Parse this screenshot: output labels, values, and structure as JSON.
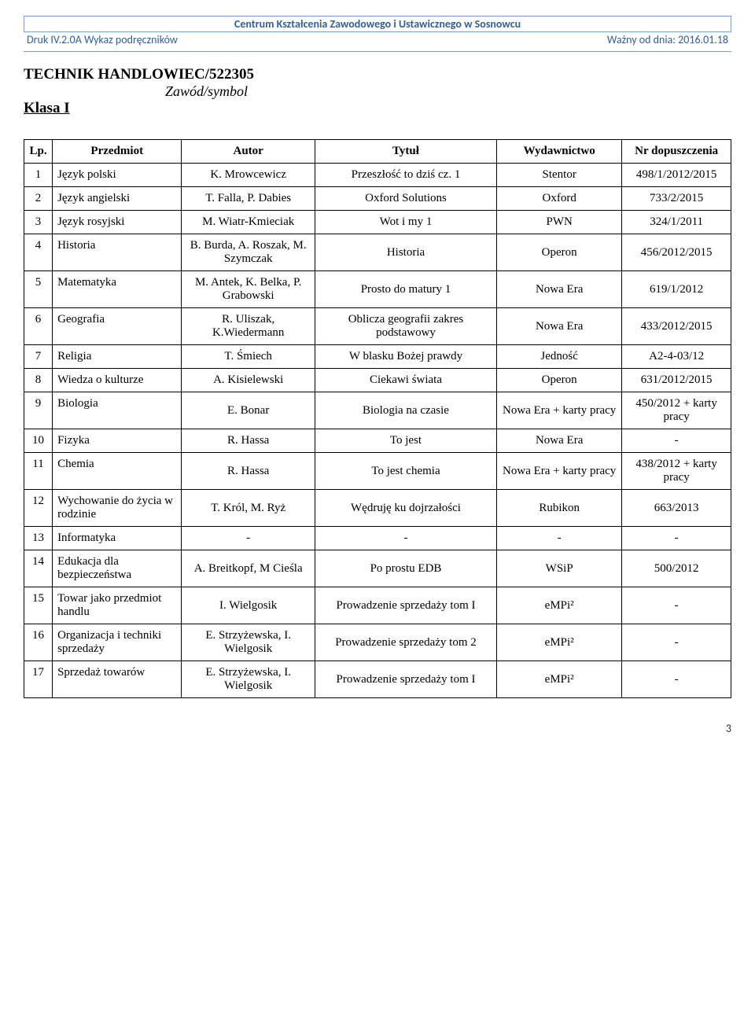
{
  "header": {
    "center": "Centrum Kształcenia Zawodowego i Ustawicznego w Sosnowcu",
    "left": "Druk IV.2.0A Wykaz podręczników",
    "right": "Ważny od dnia: 2016.01.18"
  },
  "titles": {
    "main": "TECHNIK HANDLOWIEC/522305",
    "sub": "Zawód/symbol",
    "klasa": "Klasa I"
  },
  "columns": {
    "lp": "Lp.",
    "subject": "Przedmiot",
    "author": "Autor",
    "title": "Tytuł",
    "publisher": "Wydawnictwo",
    "nr": "Nr dopuszczenia"
  },
  "rows": [
    {
      "lp": "1",
      "subject": "Język polski",
      "author": "K. Mrowcewicz",
      "title": "Przeszłość to dziś cz. 1",
      "publisher": "Stentor",
      "nr": "498/1/2012/2015"
    },
    {
      "lp": "2",
      "subject": "Język angielski",
      "author": "T. Falla, P. Dabies",
      "title": "Oxford Solutions",
      "publisher": "Oxford",
      "nr": "733/2/2015"
    },
    {
      "lp": "3",
      "subject": "Język rosyjski",
      "author": "M. Wiatr-Kmieciak",
      "title": "Wot i my 1",
      "publisher": "PWN",
      "nr": "324/1/2011"
    },
    {
      "lp": "4",
      "subject": "Historia",
      "author": "B. Burda, A. Roszak, M. Szymczak",
      "title": "Historia",
      "publisher": "Operon",
      "nr": "456/2012/2015"
    },
    {
      "lp": "5",
      "subject": "Matematyka",
      "author": "M. Antek, K. Belka, P. Grabowski",
      "title": "Prosto do matury 1",
      "publisher": "Nowa Era",
      "nr": "619/1/2012"
    },
    {
      "lp": "6",
      "subject": "Geografia",
      "author": "R. Uliszak, K.Wiedermann",
      "title": "Oblicza geografii zakres podstawowy",
      "publisher": "Nowa Era",
      "nr": "433/2012/2015"
    },
    {
      "lp": "7",
      "subject": "Religia",
      "author": "T. Śmiech",
      "title": "W blasku Bożej prawdy",
      "publisher": "Jedność",
      "nr": "A2-4-03/12"
    },
    {
      "lp": "8",
      "subject": "Wiedza o kulturze",
      "author": "A. Kisielewski",
      "title": "Ciekawi świata",
      "publisher": "Operon",
      "nr": "631/2012/2015"
    },
    {
      "lp": "9",
      "subject": "Biologia",
      "author": "E. Bonar",
      "title": "Biologia na czasie",
      "publisher": "Nowa Era + karty pracy",
      "nr": "450/2012 + karty pracy"
    },
    {
      "lp": "10",
      "subject": "Fizyka",
      "author": "R. Hassa",
      "title": "To jest",
      "publisher": "Nowa Era",
      "nr": "-"
    },
    {
      "lp": "11",
      "subject": "Chemia",
      "author": "R. Hassa",
      "title": "To jest chemia",
      "publisher": "Nowa Era + karty pracy",
      "nr": "438/2012 + karty pracy"
    },
    {
      "lp": "12",
      "subject": "Wychowanie do życia w rodzinie",
      "author": "T. Król, M. Ryż",
      "title": "Wędruję ku dojrzałości",
      "publisher": "Rubikon",
      "nr": "663/2013"
    },
    {
      "lp": "13",
      "subject": "Informatyka",
      "author": "-",
      "title": "-",
      "publisher": "-",
      "nr": "-"
    },
    {
      "lp": "14",
      "subject": "Edukacja dla bezpieczeństwa",
      "author": "A. Breitkopf, M Cieśla",
      "title": "Po prostu EDB",
      "publisher": "WSiP",
      "nr": "500/2012"
    },
    {
      "lp": "15",
      "subject": "Towar jako przedmiot handlu",
      "author": "I. Wielgosik",
      "title": "Prowadzenie sprzedaży tom I",
      "publisher": "eMPi²",
      "nr": "-"
    },
    {
      "lp": "16",
      "subject": "Organizacja i techniki sprzedaży",
      "author": "E. Strzyżewska, I. Wielgosik",
      "title": "Prowadzenie sprzedaży tom 2",
      "publisher": "eMPi²",
      "nr": "-"
    },
    {
      "lp": "17",
      "subject": "Sprzedaż towarów",
      "author": "E. Strzyżewska, I. Wielgosik",
      "title": "Prowadzenie sprzedaży tom I",
      "publisher": "eMPi²",
      "nr": "-"
    }
  ],
  "pagenum": "3",
  "style": {
    "header_color": "#365f91",
    "border_color": "#7a9fd4",
    "table_border": "#000000",
    "font_body": "Times New Roman",
    "font_header": "Calibri"
  }
}
